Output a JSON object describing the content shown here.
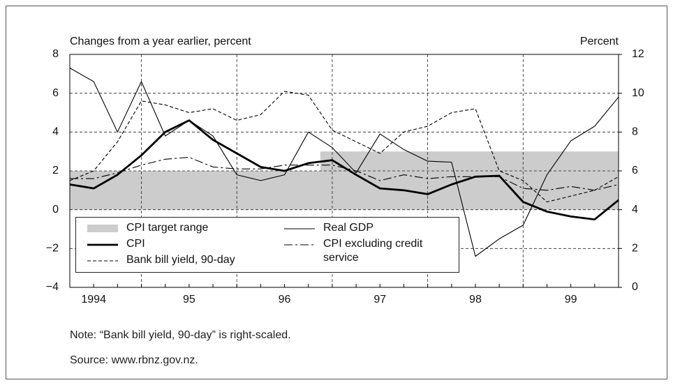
{
  "chart_data": {
    "type": "line",
    "y_label": "Changes from a year earlier, percent",
    "y2_label": "Percent",
    "categories": [
      null,
      "1994",
      null,
      null,
      null,
      "95",
      null,
      null,
      null,
      "96",
      null,
      null,
      null,
      "97",
      null,
      null,
      null,
      "98",
      null,
      null,
      null,
      "99",
      null,
      null
    ],
    "ylim": [
      -4,
      8
    ],
    "yticks": [
      {
        "value": -4,
        "label": "−4"
      },
      {
        "value": -2,
        "label": "−2"
      },
      0,
      2,
      4,
      6,
      8
    ],
    "y2lim": [
      0,
      12
    ],
    "y2ticks": [
      0,
      2,
      4,
      6,
      8,
      10,
      12
    ],
    "grid": true,
    "series": [
      {
        "name": "CPI target range",
        "type": "band",
        "color": "#cccccc",
        "values": [
          2,
          2,
          2,
          2,
          2,
          2,
          2,
          2,
          2,
          2,
          2,
          3,
          3,
          3,
          3,
          3,
          3,
          3,
          3,
          3,
          3,
          3,
          3,
          3
        ]
      },
      {
        "name": "Real GDP",
        "color": "#000000",
        "style": "thin",
        "values": [
          7.3,
          6.6,
          4.0,
          6.6,
          3.8,
          4.6,
          3.8,
          1.8,
          1.5,
          1.8,
          4.0,
          3.2,
          1.9,
          3.9,
          3.1,
          2.5,
          2.45,
          -2.4,
          -1.5,
          -0.8,
          1.8,
          3.55,
          4.3,
          5.8
        ]
      },
      {
        "name": "CPI",
        "color": "#000000",
        "style": "thick",
        "values": [
          1.3,
          1.1,
          1.8,
          2.8,
          4.0,
          4.6,
          3.6,
          2.9,
          2.2,
          2.0,
          2.4,
          2.55,
          1.8,
          1.1,
          1.0,
          0.8,
          1.3,
          1.7,
          1.75,
          0.4,
          -0.1,
          -0.35,
          -0.5,
          0.5
        ]
      },
      {
        "name": "CPI excluding credit service",
        "color": "#000000",
        "style": "dashdot",
        "values": [
          1.6,
          1.6,
          1.9,
          2.3,
          2.6,
          2.7,
          2.2,
          2.1,
          2.1,
          2.3,
          2.3,
          2.3,
          2.0,
          1.5,
          1.8,
          1.6,
          1.7,
          1.7,
          1.7,
          1.1,
          1.0,
          1.2,
          1.0,
          1.3
        ]
      },
      {
        "name": "Bank bill yield, 90-day",
        "color": "#000000",
        "style": "dashed",
        "axis": "y2",
        "values": [
          5.5,
          6.0,
          7.5,
          9.6,
          9.4,
          9.0,
          9.2,
          8.6,
          8.9,
          10.1,
          9.9,
          8.1,
          7.5,
          6.9,
          8.0,
          8.3,
          9.0,
          9.2,
          6.0,
          5.5,
          4.4,
          4.7,
          5.0,
          5.7
        ]
      }
    ],
    "legend_order": [
      0,
      2,
      4,
      1,
      3
    ],
    "note": "Note: “Bank bill yield, 90-day” is right-scaled.",
    "source": "Source: www.rbnz.gov.nz."
  }
}
